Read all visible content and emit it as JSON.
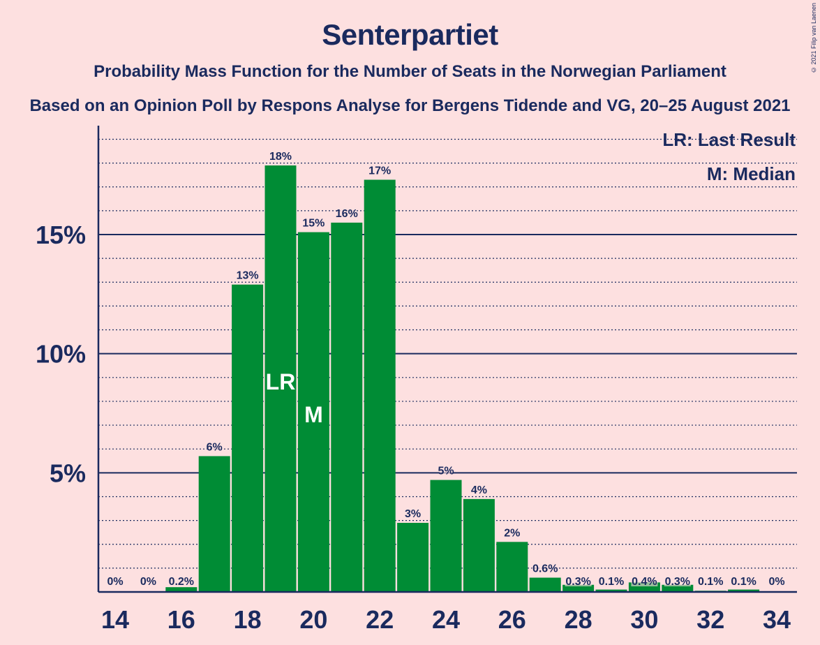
{
  "title": "Senterpartiet",
  "subtitle": "Probability Mass Function for the Number of Seats in the Norwegian Parliament",
  "subtitle2": "Based on an Opinion Poll by Respons Analyse for Bergens Tidende and VG, 20–25 August 2021",
  "copyright": "© 2021 Filip van Laenen",
  "legend": {
    "lr": "LR: Last Result",
    "median": "M: Median"
  },
  "colors": {
    "bar": "#008c35",
    "text": "#1a2a5e",
    "background": "#fde0e0"
  },
  "chart_data": {
    "type": "bar",
    "x": [
      14,
      15,
      16,
      17,
      18,
      19,
      20,
      21,
      22,
      23,
      24,
      25,
      26,
      27,
      28,
      29,
      30,
      31,
      32,
      33,
      34
    ],
    "values": [
      0,
      0,
      0.2,
      5.7,
      12.9,
      17.9,
      15.1,
      15.5,
      17.3,
      2.9,
      4.7,
      3.9,
      2.1,
      0.6,
      0.3,
      0.1,
      0.4,
      0.3,
      0.05,
      0.1,
      0
    ],
    "labels": [
      "0%",
      "0%",
      "0.2%",
      "6%",
      "13%",
      "18%",
      "15%",
      "16%",
      "17%",
      "3%",
      "5%",
      "4%",
      "2%",
      "0.6%",
      "0.3%",
      "0.1%",
      "0.4%",
      "0.3%",
      "0.1%",
      "0.1%",
      "0%"
    ],
    "x_ticks": [
      14,
      16,
      18,
      20,
      22,
      24,
      26,
      28,
      30,
      32,
      34
    ],
    "y_ticks": [
      5,
      10,
      15
    ],
    "y_tick_labels": [
      "5%",
      "10%",
      "15%"
    ],
    "ylim": [
      0,
      19.5
    ],
    "minor_grid_step": 1,
    "last_result": 19,
    "median": 20,
    "lr_label": "LR",
    "median_label": "M"
  }
}
